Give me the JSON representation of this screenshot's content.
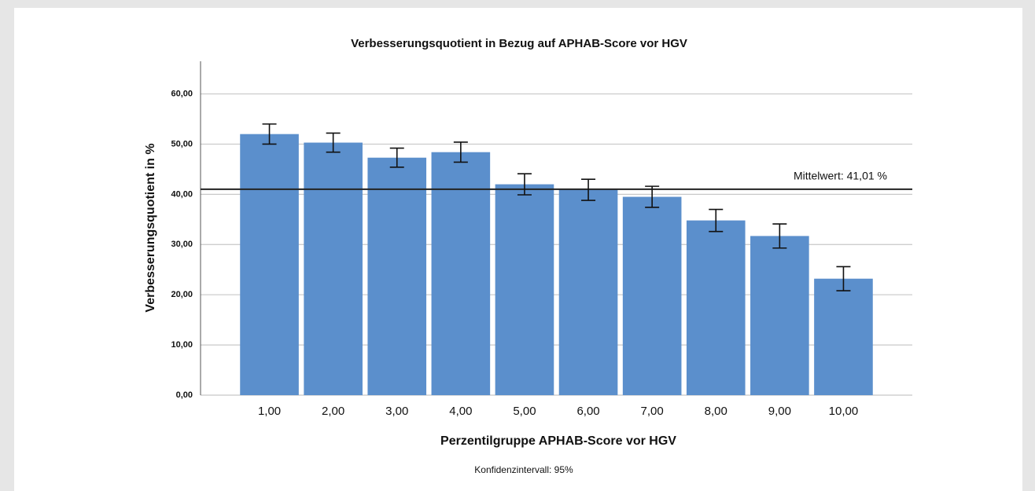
{
  "chart_data": {
    "type": "bar",
    "title": "Verbesserungsquotient in Bezug auf APHAB-Score vor HGV",
    "x_label": "Perzentilgruppe APHAB-Score vor HGV",
    "y_label": "Verbesserungsquotient in %",
    "footnote": "Konfidenzintervall: 95%",
    "categories": [
      "1,00",
      "2,00",
      "3,00",
      "4,00",
      "5,00",
      "6,00",
      "7,00",
      "8,00",
      "9,00",
      "10,00"
    ],
    "values": [
      52.0,
      50.3,
      47.3,
      48.4,
      42.0,
      40.9,
      39.5,
      34.8,
      31.7,
      23.2
    ],
    "errors": [
      2.0,
      1.9,
      1.9,
      2.0,
      2.1,
      2.1,
      2.1,
      2.2,
      2.4,
      2.4
    ],
    "color": "#5b8fcc",
    "ylim": [
      0,
      66.5
    ],
    "yticks": [
      {
        "value": 0,
        "label": "0,00"
      },
      {
        "value": 10,
        "label": "10,00"
      },
      {
        "value": 20,
        "label": "20,00"
      },
      {
        "value": 30,
        "label": "30,00"
      },
      {
        "value": 40,
        "label": "40,00"
      },
      {
        "value": 50,
        "label": "50,00"
      },
      {
        "value": 60,
        "label": "60,00"
      }
    ],
    "grid": true,
    "mean_line": {
      "value": 41.01,
      "label": "Mittelwert: 41,01 %"
    }
  }
}
